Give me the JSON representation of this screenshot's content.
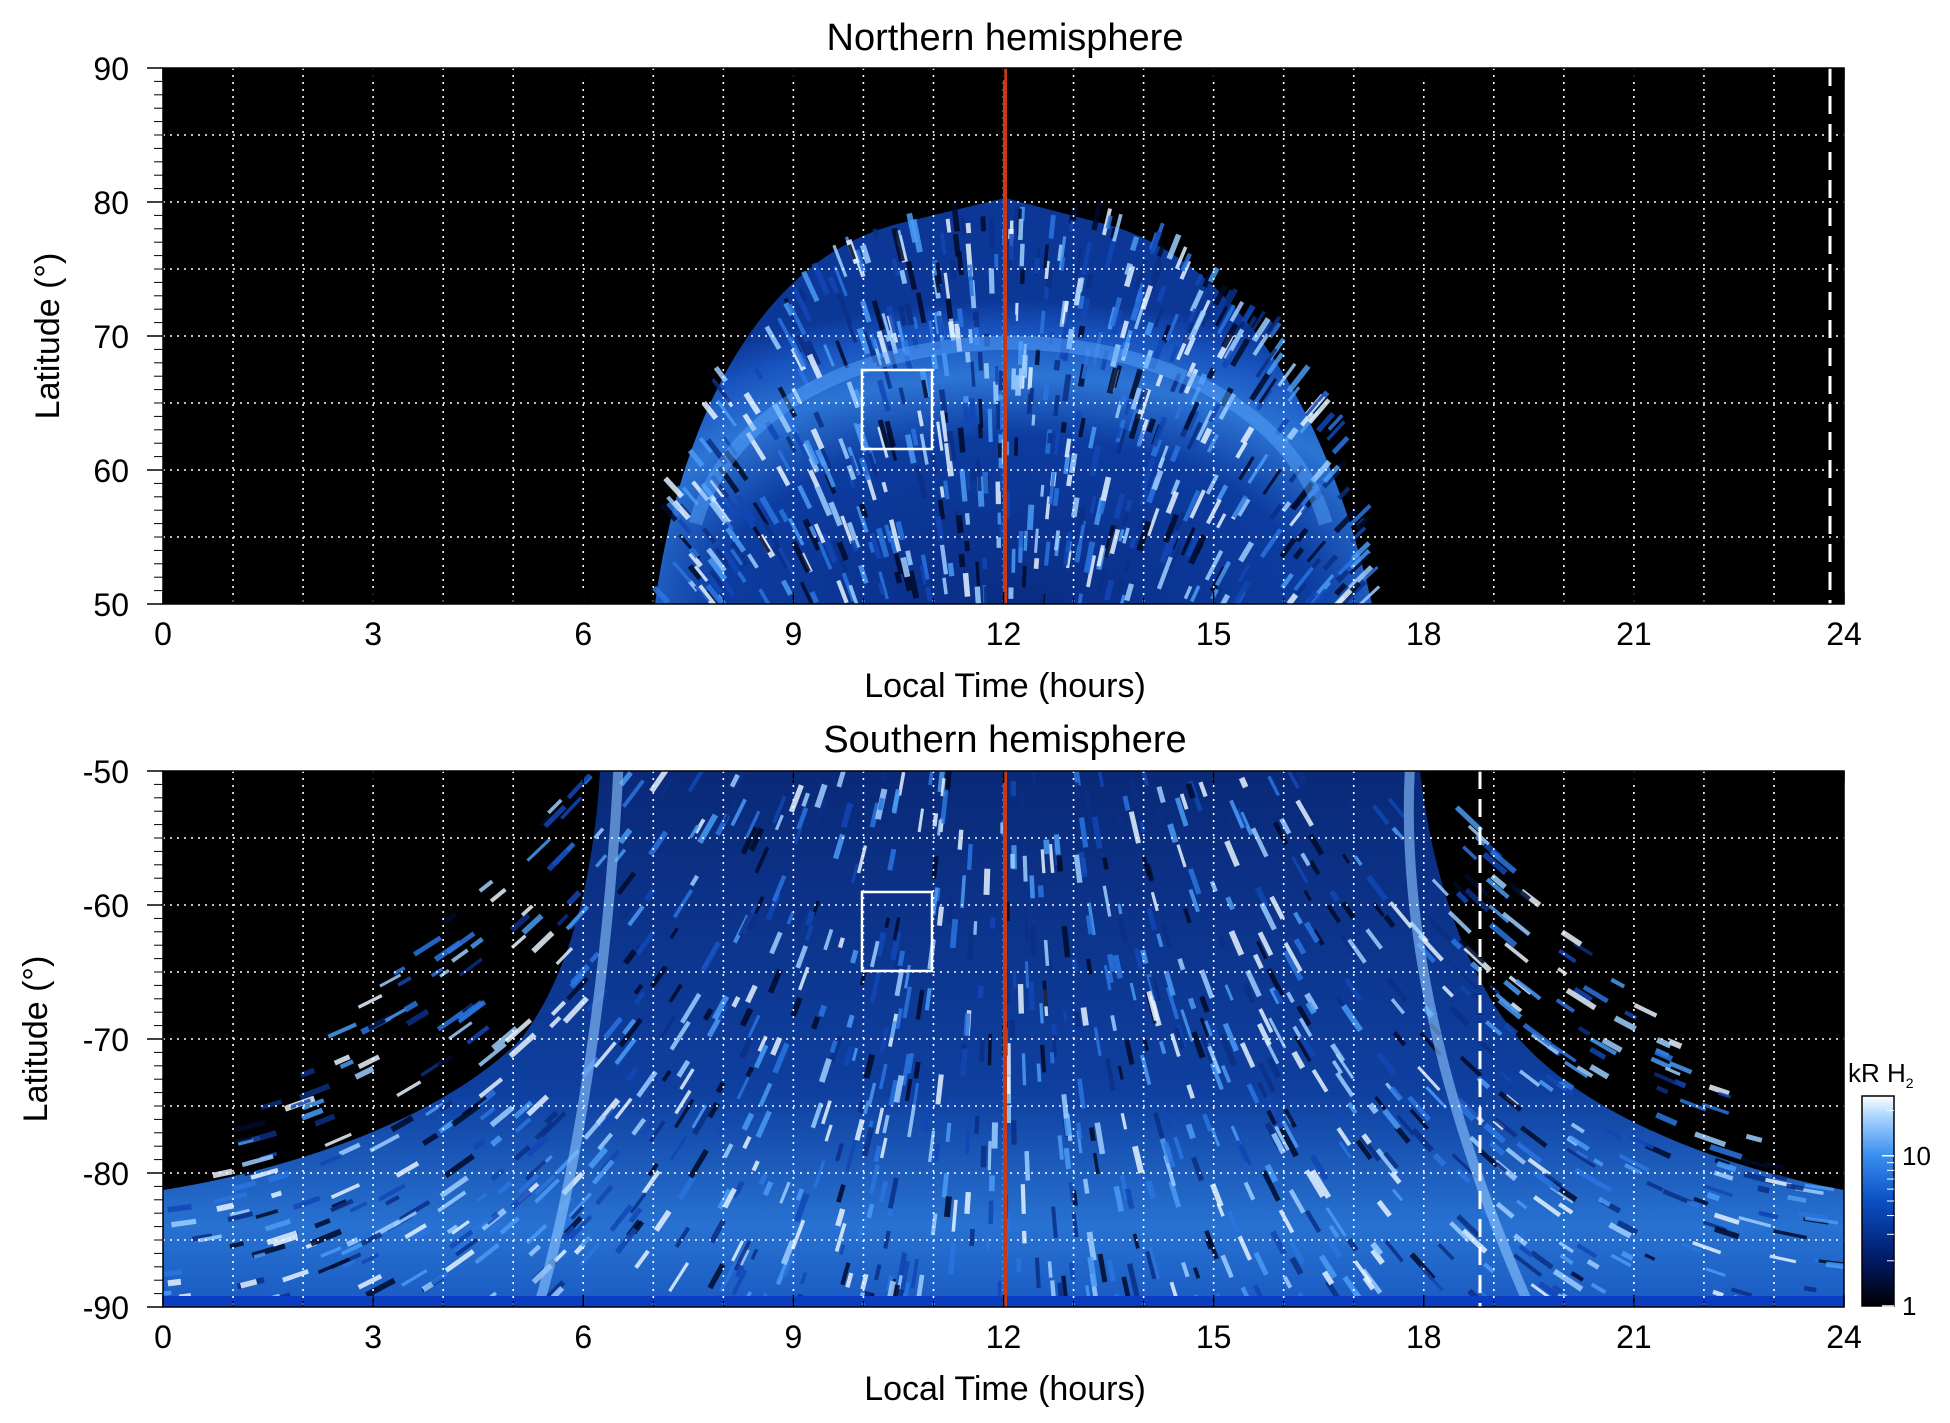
{
  "chart_data": [
    {
      "type": "heatmap",
      "title": "Northern hemisphere",
      "xlabel": "Local Time (hours)",
      "ylabel": "Latitude (°)",
      "xlim": [
        0,
        24
      ],
      "ylim": [
        50,
        90
      ],
      "x_ticks": [
        "0",
        "3",
        "6",
        "9",
        "12",
        "15",
        "18",
        "21",
        "24"
      ],
      "y_ticks": [
        "50",
        "60",
        "70",
        "80",
        "90"
      ],
      "grid": true,
      "emission_region": {
        "local_time_min": 7.0,
        "local_time_max": 17.3,
        "latitude_min": 50,
        "latitude_max": 80,
        "outer_band_latitude_min": 62,
        "outer_band_latitude_max": 77
      },
      "noon_line_local_time": 12,
      "noon_line_color": "#c8391a",
      "dashed_line_local_time": 23.8,
      "box": {
        "local_time": [
          10,
          11
        ],
        "latitude": [
          61.5,
          67.5
        ]
      }
    },
    {
      "type": "heatmap",
      "title": "Southern hemisphere",
      "xlabel": "Local Time (hours)",
      "ylabel": "Latitude (°)",
      "xlim": [
        0,
        24
      ],
      "ylim": [
        -90,
        -50
      ],
      "x_ticks": [
        "0",
        "3",
        "6",
        "9",
        "12",
        "15",
        "18",
        "21",
        "24"
      ],
      "y_ticks": [
        "-90",
        "-80",
        "-70",
        "-60",
        "-50"
      ],
      "grid": true,
      "emission_region": {
        "local_time_min": 0,
        "local_time_max": 24,
        "latitude_min": -90,
        "latitude_max": -50,
        "dawn_arc_local_time": 6.5,
        "dusk_arc_local_time": 17.8
      },
      "noon_line_local_time": 12,
      "noon_line_color": "#c8391a",
      "dashed_line_local_time": 18.8,
      "box": {
        "local_time": [
          10,
          11
        ],
        "latitude": [
          -65,
          -59
        ]
      }
    }
  ],
  "colorbar": {
    "label": "kR H",
    "label_subscript": "2",
    "scale": "log",
    "range": [
      1,
      25
    ],
    "ticks": [
      "1",
      "10"
    ],
    "colors": [
      "#000000",
      "#001a66",
      "#0b4fc4",
      "#3a8ff0",
      "#a9d4ff",
      "#ffffff"
    ]
  }
}
